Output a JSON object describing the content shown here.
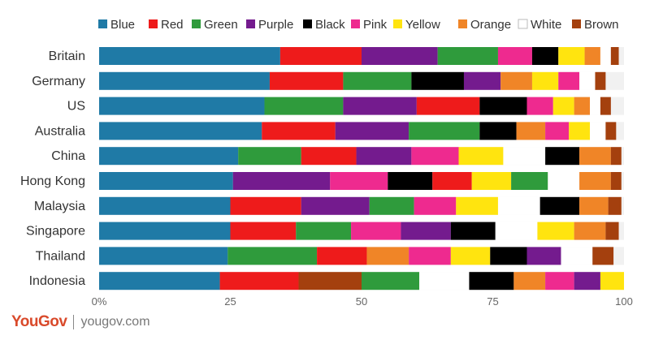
{
  "chart_data": {
    "type": "bar",
    "orientation": "horizontal",
    "stacked": true,
    "title": "",
    "xlabel": "",
    "ylabel": "",
    "xlim": [
      0,
      100
    ],
    "x_ticks": [
      0,
      25,
      50,
      75,
      100
    ],
    "x_tick_labels": [
      "0%",
      "25",
      "50",
      "75",
      "100"
    ],
    "legend_position": "top",
    "grid": false,
    "categories": [
      "Britain",
      "Germany",
      "US",
      "Australia",
      "China",
      "Hong Kong",
      "Malaysia",
      "Singapore",
      "Thailand",
      "Indonesia"
    ],
    "rows": [
      {
        "segments": [
          [
            "Blue",
            34.5
          ],
          [
            "Red",
            15.5
          ],
          [
            "Purple",
            14.5
          ],
          [
            "Green",
            11.5
          ],
          [
            "Pink",
            6.5
          ],
          [
            "Black",
            5
          ],
          [
            "Yellow",
            5
          ],
          [
            "Orange",
            3
          ],
          [
            "White",
            2
          ],
          [
            "Brown",
            1.5
          ]
        ]
      },
      {
        "segments": [
          [
            "Blue",
            32.5
          ],
          [
            "Red",
            14
          ],
          [
            "Green",
            13
          ],
          [
            "Black",
            10
          ],
          [
            "Purple",
            7
          ],
          [
            "Orange",
            6
          ],
          [
            "Yellow",
            5
          ],
          [
            "Pink",
            4
          ],
          [
            "White",
            3
          ],
          [
            "Brown",
            2
          ]
        ]
      },
      {
        "segments": [
          [
            "Blue",
            31.5
          ],
          [
            "Green",
            15
          ],
          [
            "Purple",
            14
          ],
          [
            "Red",
            12
          ],
          [
            "Black",
            9
          ],
          [
            "Pink",
            5
          ],
          [
            "Yellow",
            4
          ],
          [
            "Orange",
            3
          ],
          [
            "White",
            2
          ],
          [
            "Brown",
            2
          ]
        ]
      },
      {
        "segments": [
          [
            "Blue",
            31
          ],
          [
            "Red",
            14
          ],
          [
            "Purple",
            14
          ],
          [
            "Green",
            13.5
          ],
          [
            "Black",
            7
          ],
          [
            "Orange",
            5.5
          ],
          [
            "Pink",
            4.5
          ],
          [
            "Yellow",
            4
          ],
          [
            "White",
            3
          ],
          [
            "Brown",
            2
          ]
        ]
      },
      {
        "segments": [
          [
            "Blue",
            26.5
          ],
          [
            "Green",
            12
          ],
          [
            "Red",
            10.5
          ],
          [
            "Purple",
            10.5
          ],
          [
            "Pink",
            9
          ],
          [
            "Yellow",
            8.5
          ],
          [
            "White",
            8
          ],
          [
            "Black",
            6.5
          ],
          [
            "Orange",
            6
          ],
          [
            "Brown",
            2
          ]
        ]
      },
      {
        "segments": [
          [
            "Blue",
            25.5
          ],
          [
            "Purple",
            18.5
          ],
          [
            "Pink",
            11
          ],
          [
            "Black",
            8.5
          ],
          [
            "Red",
            7.5
          ],
          [
            "Yellow",
            7.5
          ],
          [
            "Green",
            7
          ],
          [
            "White",
            6
          ],
          [
            "Orange",
            6
          ],
          [
            "Brown",
            2
          ]
        ]
      },
      {
        "segments": [
          [
            "Blue",
            25
          ],
          [
            "Red",
            13.5
          ],
          [
            "Purple",
            13
          ],
          [
            "Green",
            8.5
          ],
          [
            "Pink",
            8
          ],
          [
            "Yellow",
            8
          ],
          [
            "White",
            8
          ],
          [
            "Black",
            7.5
          ],
          [
            "Orange",
            5.5
          ],
          [
            "Brown",
            2.5
          ]
        ]
      },
      {
        "segments": [
          [
            "Blue",
            25
          ],
          [
            "Red",
            12.5
          ],
          [
            "Green",
            10.5
          ],
          [
            "Pink",
            9.5
          ],
          [
            "Purple",
            9.5
          ],
          [
            "Black",
            8.5
          ],
          [
            "White",
            8
          ],
          [
            "Yellow",
            7
          ],
          [
            "Orange",
            6
          ],
          [
            "Brown",
            2.5
          ]
        ]
      },
      {
        "segments": [
          [
            "Blue",
            24.5
          ],
          [
            "Green",
            17
          ],
          [
            "Red",
            9.5
          ],
          [
            "Orange",
            8
          ],
          [
            "Pink",
            8
          ],
          [
            "Yellow",
            7.5
          ],
          [
            "Black",
            7
          ],
          [
            "Purple",
            6.5
          ],
          [
            "White",
            6
          ],
          [
            "Brown",
            4
          ]
        ]
      },
      {
        "segments": [
          [
            "Blue",
            23
          ],
          [
            "Red",
            15
          ],
          [
            "Brown",
            12
          ],
          [
            "Green",
            11
          ],
          [
            "White",
            9.5
          ],
          [
            "Black",
            8.5
          ],
          [
            "Orange",
            6
          ],
          [
            "Pink",
            5.5
          ],
          [
            "Purple",
            5
          ],
          [
            "Yellow",
            4.5
          ]
        ]
      }
    ],
    "legend": [
      "Blue",
      "Red",
      "Green",
      "Purple",
      "Black",
      "Pink",
      "Yellow",
      "Orange",
      "White",
      "Brown"
    ],
    "colors": {
      "Blue": "#1f7aa6",
      "Red": "#ee1b1b",
      "Green": "#2f9b3c",
      "Purple": "#741b8e",
      "Black": "#000000",
      "Pink": "#ee2a8f",
      "Yellow": "#ffe40f",
      "Orange": "#f08527",
      "White": "#ffffff",
      "Brown": "#a4400e"
    },
    "track_color": "#f1f1f1"
  },
  "footer": {
    "brand": "YouGov",
    "site": "yougov.com"
  }
}
